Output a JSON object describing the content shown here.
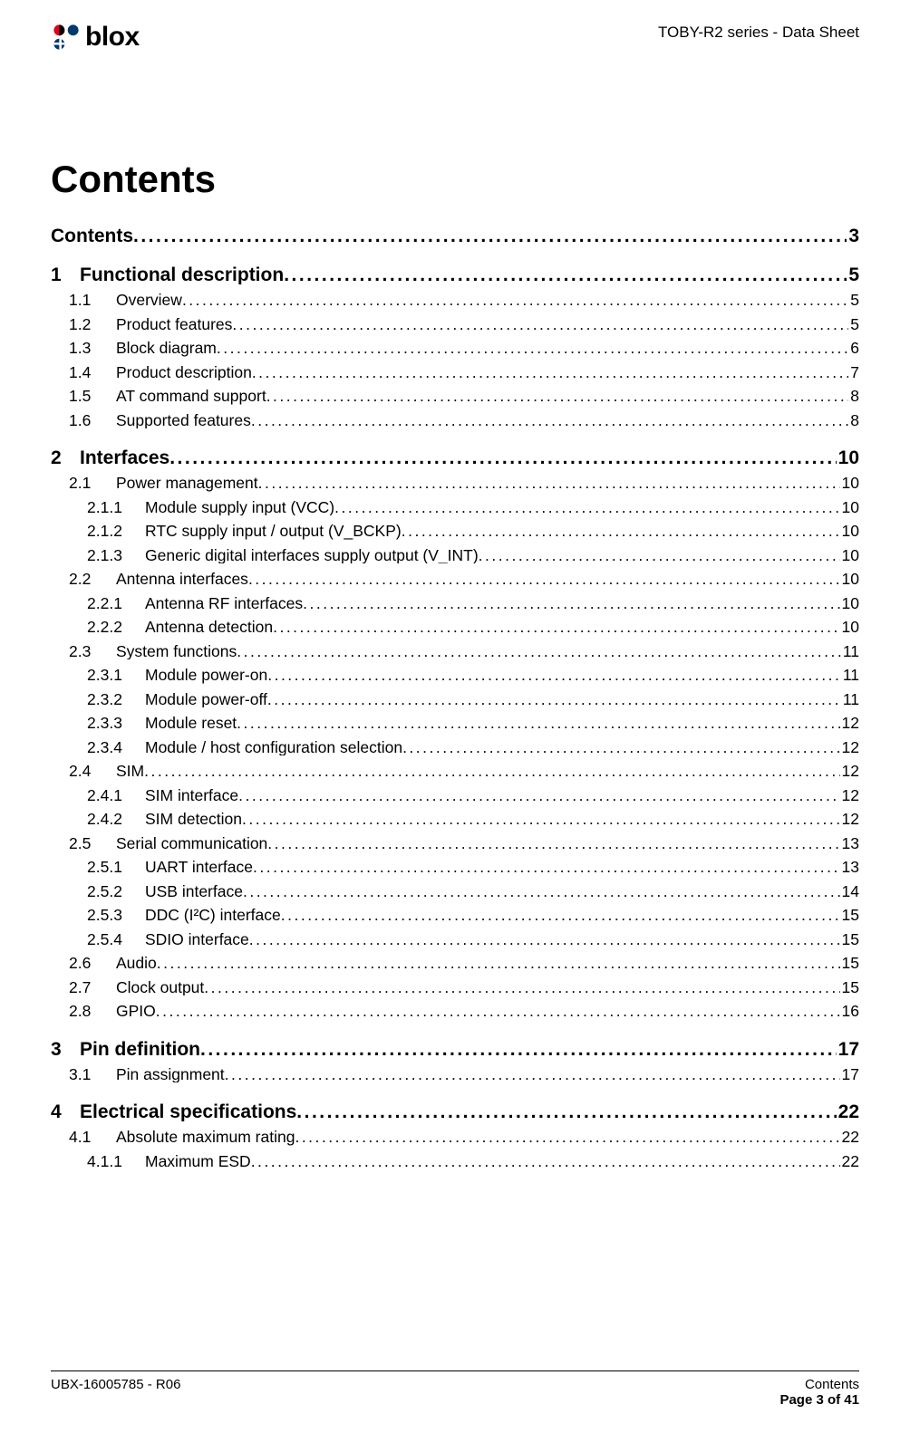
{
  "header": {
    "logo_text": "blox",
    "doc_title": "TOBY-R2 series - Data Sheet",
    "logo_colors": {
      "red": "#e2001a",
      "blue": "#003a6f",
      "black": "#000000"
    }
  },
  "title": "Contents",
  "toc": [
    {
      "level": 0,
      "num": "",
      "text": "Contents",
      "page": "3"
    },
    {
      "level": 1,
      "num": "1",
      "text": "Functional description",
      "page": "5"
    },
    {
      "level": 2,
      "num": "1.1",
      "text": "Overview",
      "page": "5"
    },
    {
      "level": 2,
      "num": "1.2",
      "text": "Product features",
      "page": "5"
    },
    {
      "level": 2,
      "num": "1.3",
      "text": "Block diagram",
      "page": "6"
    },
    {
      "level": 2,
      "num": "1.4",
      "text": "Product description",
      "page": "7"
    },
    {
      "level": 2,
      "num": "1.5",
      "text": "AT command support",
      "page": "8"
    },
    {
      "level": 2,
      "num": "1.6",
      "text": "Supported features",
      "page": "8"
    },
    {
      "level": 1,
      "num": "2",
      "text": "Interfaces",
      "page": "10"
    },
    {
      "level": 2,
      "num": "2.1",
      "text": "Power management",
      "page": "10"
    },
    {
      "level": 3,
      "num": "2.1.1",
      "text": "Module supply input (VCC)",
      "page": "10"
    },
    {
      "level": 3,
      "num": "2.1.2",
      "text": "RTC supply input / output (V_BCKP)",
      "page": "10"
    },
    {
      "level": 3,
      "num": "2.1.3",
      "text": "Generic digital interfaces supply output (V_INT)",
      "page": "10"
    },
    {
      "level": 2,
      "num": "2.2",
      "text": "Antenna interfaces",
      "page": "10"
    },
    {
      "level": 3,
      "num": "2.2.1",
      "text": "Antenna RF interfaces",
      "page": "10"
    },
    {
      "level": 3,
      "num": "2.2.2",
      "text": "Antenna detection",
      "page": "10"
    },
    {
      "level": 2,
      "num": "2.3",
      "text": "System functions",
      "page": "11"
    },
    {
      "level": 3,
      "num": "2.3.1",
      "text": "Module power-on",
      "page": "11"
    },
    {
      "level": 3,
      "num": "2.3.2",
      "text": "Module power-off",
      "page": "11"
    },
    {
      "level": 3,
      "num": "2.3.3",
      "text": "Module reset",
      "page": "12"
    },
    {
      "level": 3,
      "num": "2.3.4",
      "text": "Module / host configuration selection",
      "page": "12"
    },
    {
      "level": 2,
      "num": "2.4",
      "text": "SIM",
      "page": "12"
    },
    {
      "level": 3,
      "num": "2.4.1",
      "text": "SIM interface",
      "page": "12"
    },
    {
      "level": 3,
      "num": "2.4.2",
      "text": "SIM detection",
      "page": "12"
    },
    {
      "level": 2,
      "num": "2.5",
      "text": "Serial communication",
      "page": "13"
    },
    {
      "level": 3,
      "num": "2.5.1",
      "text": "UART interface",
      "page": "13"
    },
    {
      "level": 3,
      "num": "2.5.2",
      "text": "USB interface",
      "page": "14"
    },
    {
      "level": 3,
      "num": "2.5.3",
      "text": "DDC (I²C) interface",
      "page": "15"
    },
    {
      "level": 3,
      "num": "2.5.4",
      "text": "SDIO interface",
      "page": "15"
    },
    {
      "level": 2,
      "num": "2.6",
      "text": "Audio",
      "page": "15"
    },
    {
      "level": 2,
      "num": "2.7",
      "text": "Clock output",
      "page": "15"
    },
    {
      "level": 2,
      "num": "2.8",
      "text": "GPIO",
      "page": "16"
    },
    {
      "level": 1,
      "num": "3",
      "text": "Pin definition",
      "page": "17"
    },
    {
      "level": 2,
      "num": "3.1",
      "text": "Pin assignment",
      "page": "17"
    },
    {
      "level": 1,
      "num": "4",
      "text": "Electrical specifications",
      "page": "22"
    },
    {
      "level": 2,
      "num": "4.1",
      "text": "Absolute maximum rating",
      "page": "22"
    },
    {
      "level": 3,
      "num": "4.1.1",
      "text": "Maximum ESD",
      "page": "22"
    }
  ],
  "footer": {
    "left": "UBX-16005785 - R06",
    "right_top": "Contents",
    "right_bottom": "Page 3 of 41"
  },
  "styling": {
    "font_family": "Segoe UI / Trebuchet",
    "heading_fontsize_pt": 32,
    "lvl1_fontsize_pt": 16,
    "lvl2_fontsize_pt": 13,
    "lvl3_fontsize_pt": 13,
    "text_color": "#000000",
    "background_color": "#ffffff",
    "leader_char": "."
  }
}
